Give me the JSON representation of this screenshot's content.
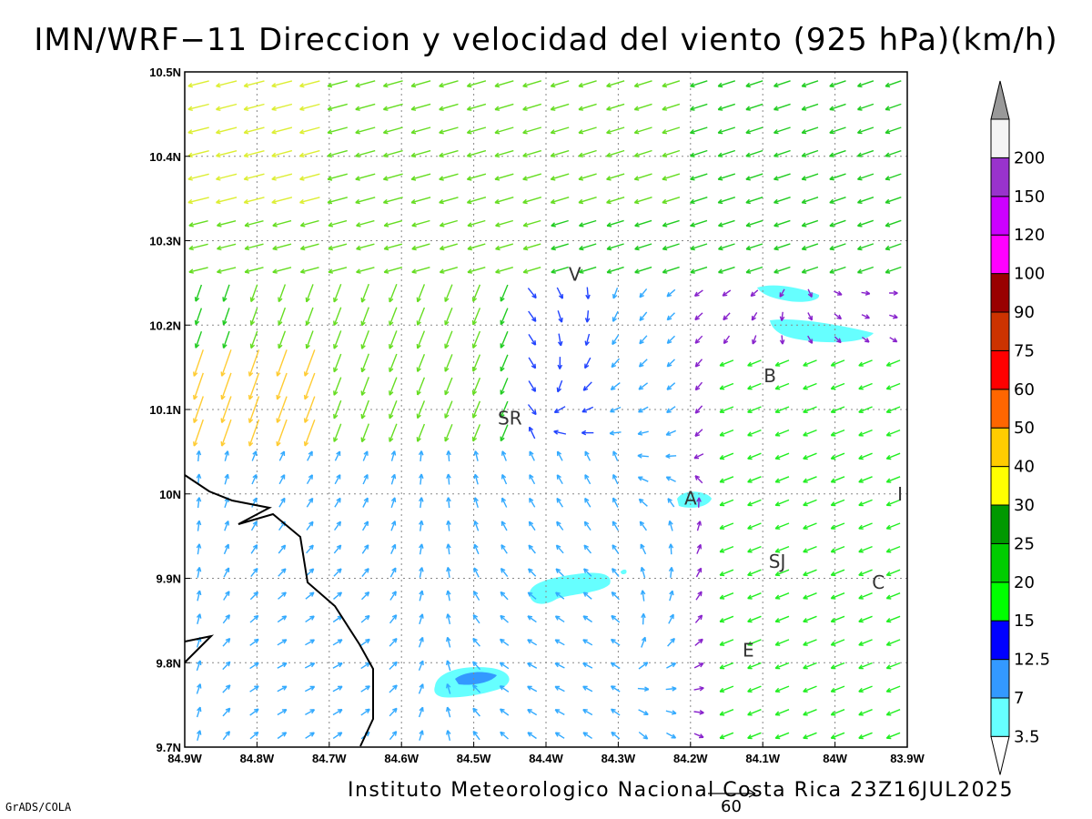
{
  "title": "IMN/WRF−11 Direccion y velocidad del viento (925 hPa)(km/h)",
  "footer": {
    "credit": "Instituto Meteorologico Nacional Costa Rica 23Z16JUL2025",
    "software": "GrADS/COLA",
    "reference_vector_label": "60"
  },
  "map": {
    "lon_range": [
      -84.9,
      -83.9
    ],
    "lat_range": [
      9.7,
      10.5
    ],
    "x_ticks": [
      "84.9W",
      "84.8W",
      "84.7W",
      "84.6W",
      "84.5W",
      "84.4W",
      "84.3W",
      "84.2W",
      "84.1W",
      "84W",
      "83.9W"
    ],
    "y_ticks": [
      "9.7N",
      "9.8N",
      "9.9N",
      "10N",
      "10.1N",
      "10.2N",
      "10.3N",
      "10.4N",
      "10.5N"
    ],
    "grid": true,
    "places": [
      {
        "label": "V",
        "lon": -84.36,
        "lat": 10.26
      },
      {
        "label": "B",
        "lon": -84.09,
        "lat": 10.14
      },
      {
        "label": "SR",
        "lon": -84.45,
        "lat": 10.09
      },
      {
        "label": "A",
        "lon": -84.2,
        "lat": 9.995
      },
      {
        "label": "I",
        "lon": -83.91,
        "lat": 10.0
      },
      {
        "label": "SJ",
        "lon": -84.08,
        "lat": 9.92
      },
      {
        "label": "C",
        "lon": -83.94,
        "lat": 9.895
      },
      {
        "label": "E",
        "lon": -84.12,
        "lat": 9.815
      }
    ]
  },
  "colorbar": {
    "levels": [
      "3.5",
      "7",
      "12.5",
      "15",
      "20",
      "25",
      "30",
      "40",
      "50",
      "60",
      "75",
      "90",
      "100",
      "120",
      "150",
      "200"
    ],
    "colors": [
      "#66ffff",
      "#3399ff",
      "#0000ff",
      "#00ff00",
      "#00cc00",
      "#009900",
      "#ffff00",
      "#ffcc00",
      "#ff6600",
      "#ff0000",
      "#cc3300",
      "#990000",
      "#ff00ff",
      "#cc00ff",
      "#9933cc",
      "#f4f4f4"
    ],
    "top_triangle_color": "#999999",
    "bottom_triangle_color": "#ffffff"
  }
}
